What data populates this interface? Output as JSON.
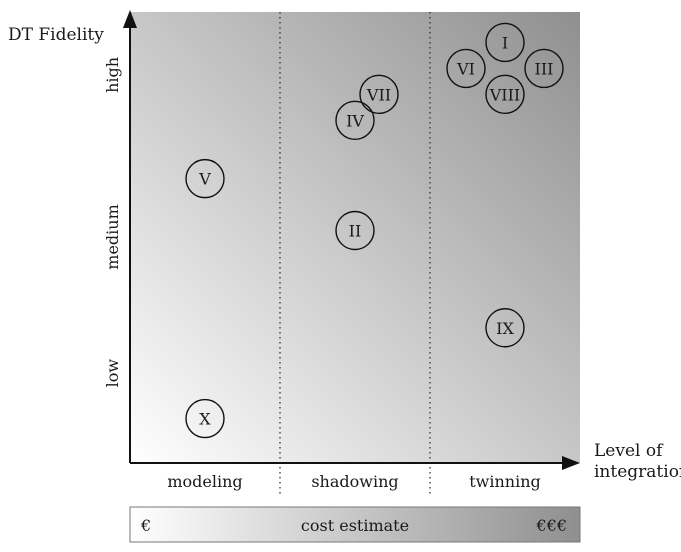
{
  "chart_data": {
    "type": "scatter",
    "ylabel": "DT Fidelity",
    "xlabel": "Level of integration",
    "x_categories": [
      "modeling",
      "shadowing",
      "twinning"
    ],
    "y_categories": [
      "low",
      "medium",
      "high"
    ],
    "points": [
      {
        "label": "I",
        "x": "twinning",
        "y": 2.95
      },
      {
        "label": "VI",
        "x": "twinning",
        "y": 2.75
      },
      {
        "label": "III",
        "x": "twinning",
        "y": 2.75
      },
      {
        "label": "VIII",
        "x": "twinning",
        "y": 2.55
      },
      {
        "label": "VII",
        "x": "shadowing",
        "y": 2.55
      },
      {
        "label": "IV",
        "x": "shadowing",
        "y": 2.35
      },
      {
        "label": "V",
        "x": "modeling",
        "y": 1.9
      },
      {
        "label": "II",
        "x": "shadowing",
        "y": 1.5
      },
      {
        "label": "IX",
        "x": "twinning",
        "y": 0.75
      },
      {
        "label": "X",
        "x": "modeling",
        "y": 0.05
      }
    ],
    "point_offsets": {
      "I": 0,
      "VI": -0.26,
      "III": 0.26,
      "VIII": 0,
      "VII": 0.16,
      "IV": 0,
      "V": 0,
      "II": 0,
      "IX": 0,
      "X": 0
    },
    "grid": false,
    "background_gradient": {
      "from": "#ffffff",
      "to": "#8f8f8f"
    }
  },
  "cost_bar": {
    "label": "cost estimate",
    "low": "€",
    "high": "€€€",
    "gradient": {
      "from": "#ffffff",
      "to": "#8f8f8f"
    }
  }
}
